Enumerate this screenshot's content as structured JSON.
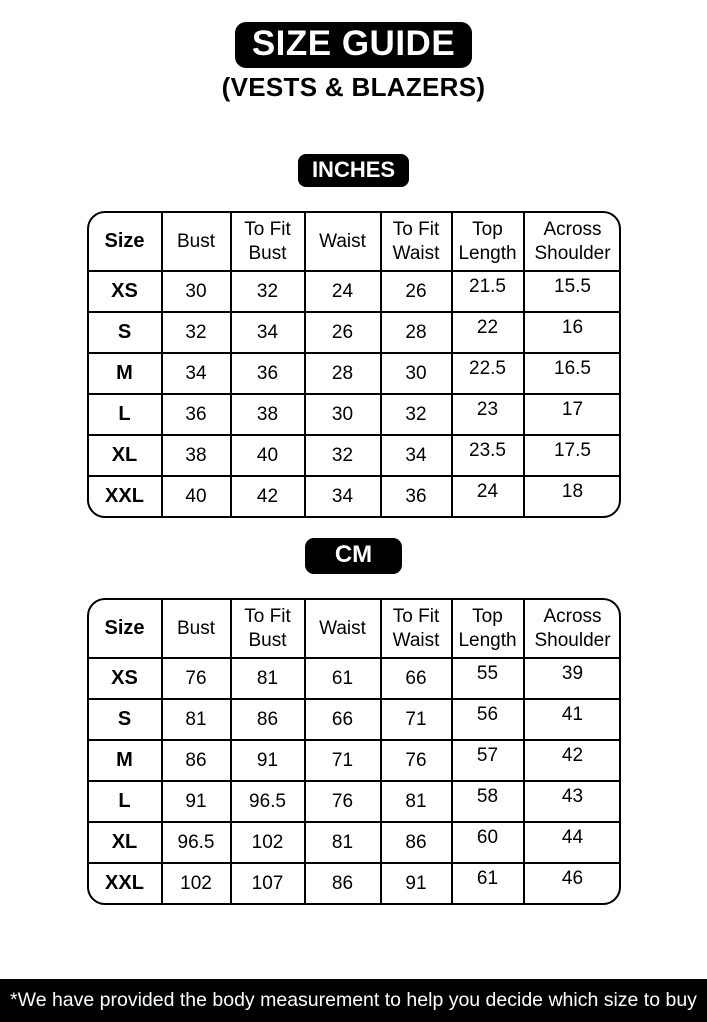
{
  "page": {
    "title": "SIZE GUIDE",
    "subtitle": "(VESTS & BLAZERS)",
    "footnote": "*We have provided the body measurement to help you decide which size to buy"
  },
  "colors": {
    "accent": "#000000",
    "background": "#ffffff",
    "text_on_accent": "#ffffff"
  },
  "tables": [
    {
      "unit_label": "INCHES",
      "columns": [
        "Size",
        "Bust",
        "To Fit Bust",
        "Waist",
        "To Fit Waist",
        "Top Length",
        "Across Shoulder"
      ],
      "rows": [
        [
          "XS",
          "30",
          "32",
          "24",
          "26",
          "21.5",
          "15.5"
        ],
        [
          "S",
          "32",
          "34",
          "26",
          "28",
          "22",
          "16"
        ],
        [
          "M",
          "34",
          "36",
          "28",
          "30",
          "22.5",
          "16.5"
        ],
        [
          "L",
          "36",
          "38",
          "30",
          "32",
          "23",
          "17"
        ],
        [
          "XL",
          "38",
          "40",
          "32",
          "34",
          "23.5",
          "17.5"
        ],
        [
          "XXL",
          "40",
          "42",
          "34",
          "36",
          "24",
          "18"
        ]
      ]
    },
    {
      "unit_label": "CM",
      "columns": [
        "Size",
        "Bust",
        "To Fit Bust",
        "Waist",
        "To Fit Waist",
        "Top Length",
        "Across Shoulder"
      ],
      "rows": [
        [
          "XS",
          "76",
          "81",
          "61",
          "66",
          "55",
          "39"
        ],
        [
          "S",
          "81",
          "86",
          "66",
          "71",
          "56",
          "41"
        ],
        [
          "M",
          "86",
          "91",
          "71",
          "76",
          "57",
          "42"
        ],
        [
          "L",
          "91",
          "96.5",
          "76",
          "81",
          "58",
          "43"
        ],
        [
          "XL",
          "96.5",
          "102",
          "81",
          "86",
          "60",
          "44"
        ],
        [
          "XXL",
          "102",
          "107",
          "86",
          "91",
          "61",
          "46"
        ]
      ]
    }
  ]
}
